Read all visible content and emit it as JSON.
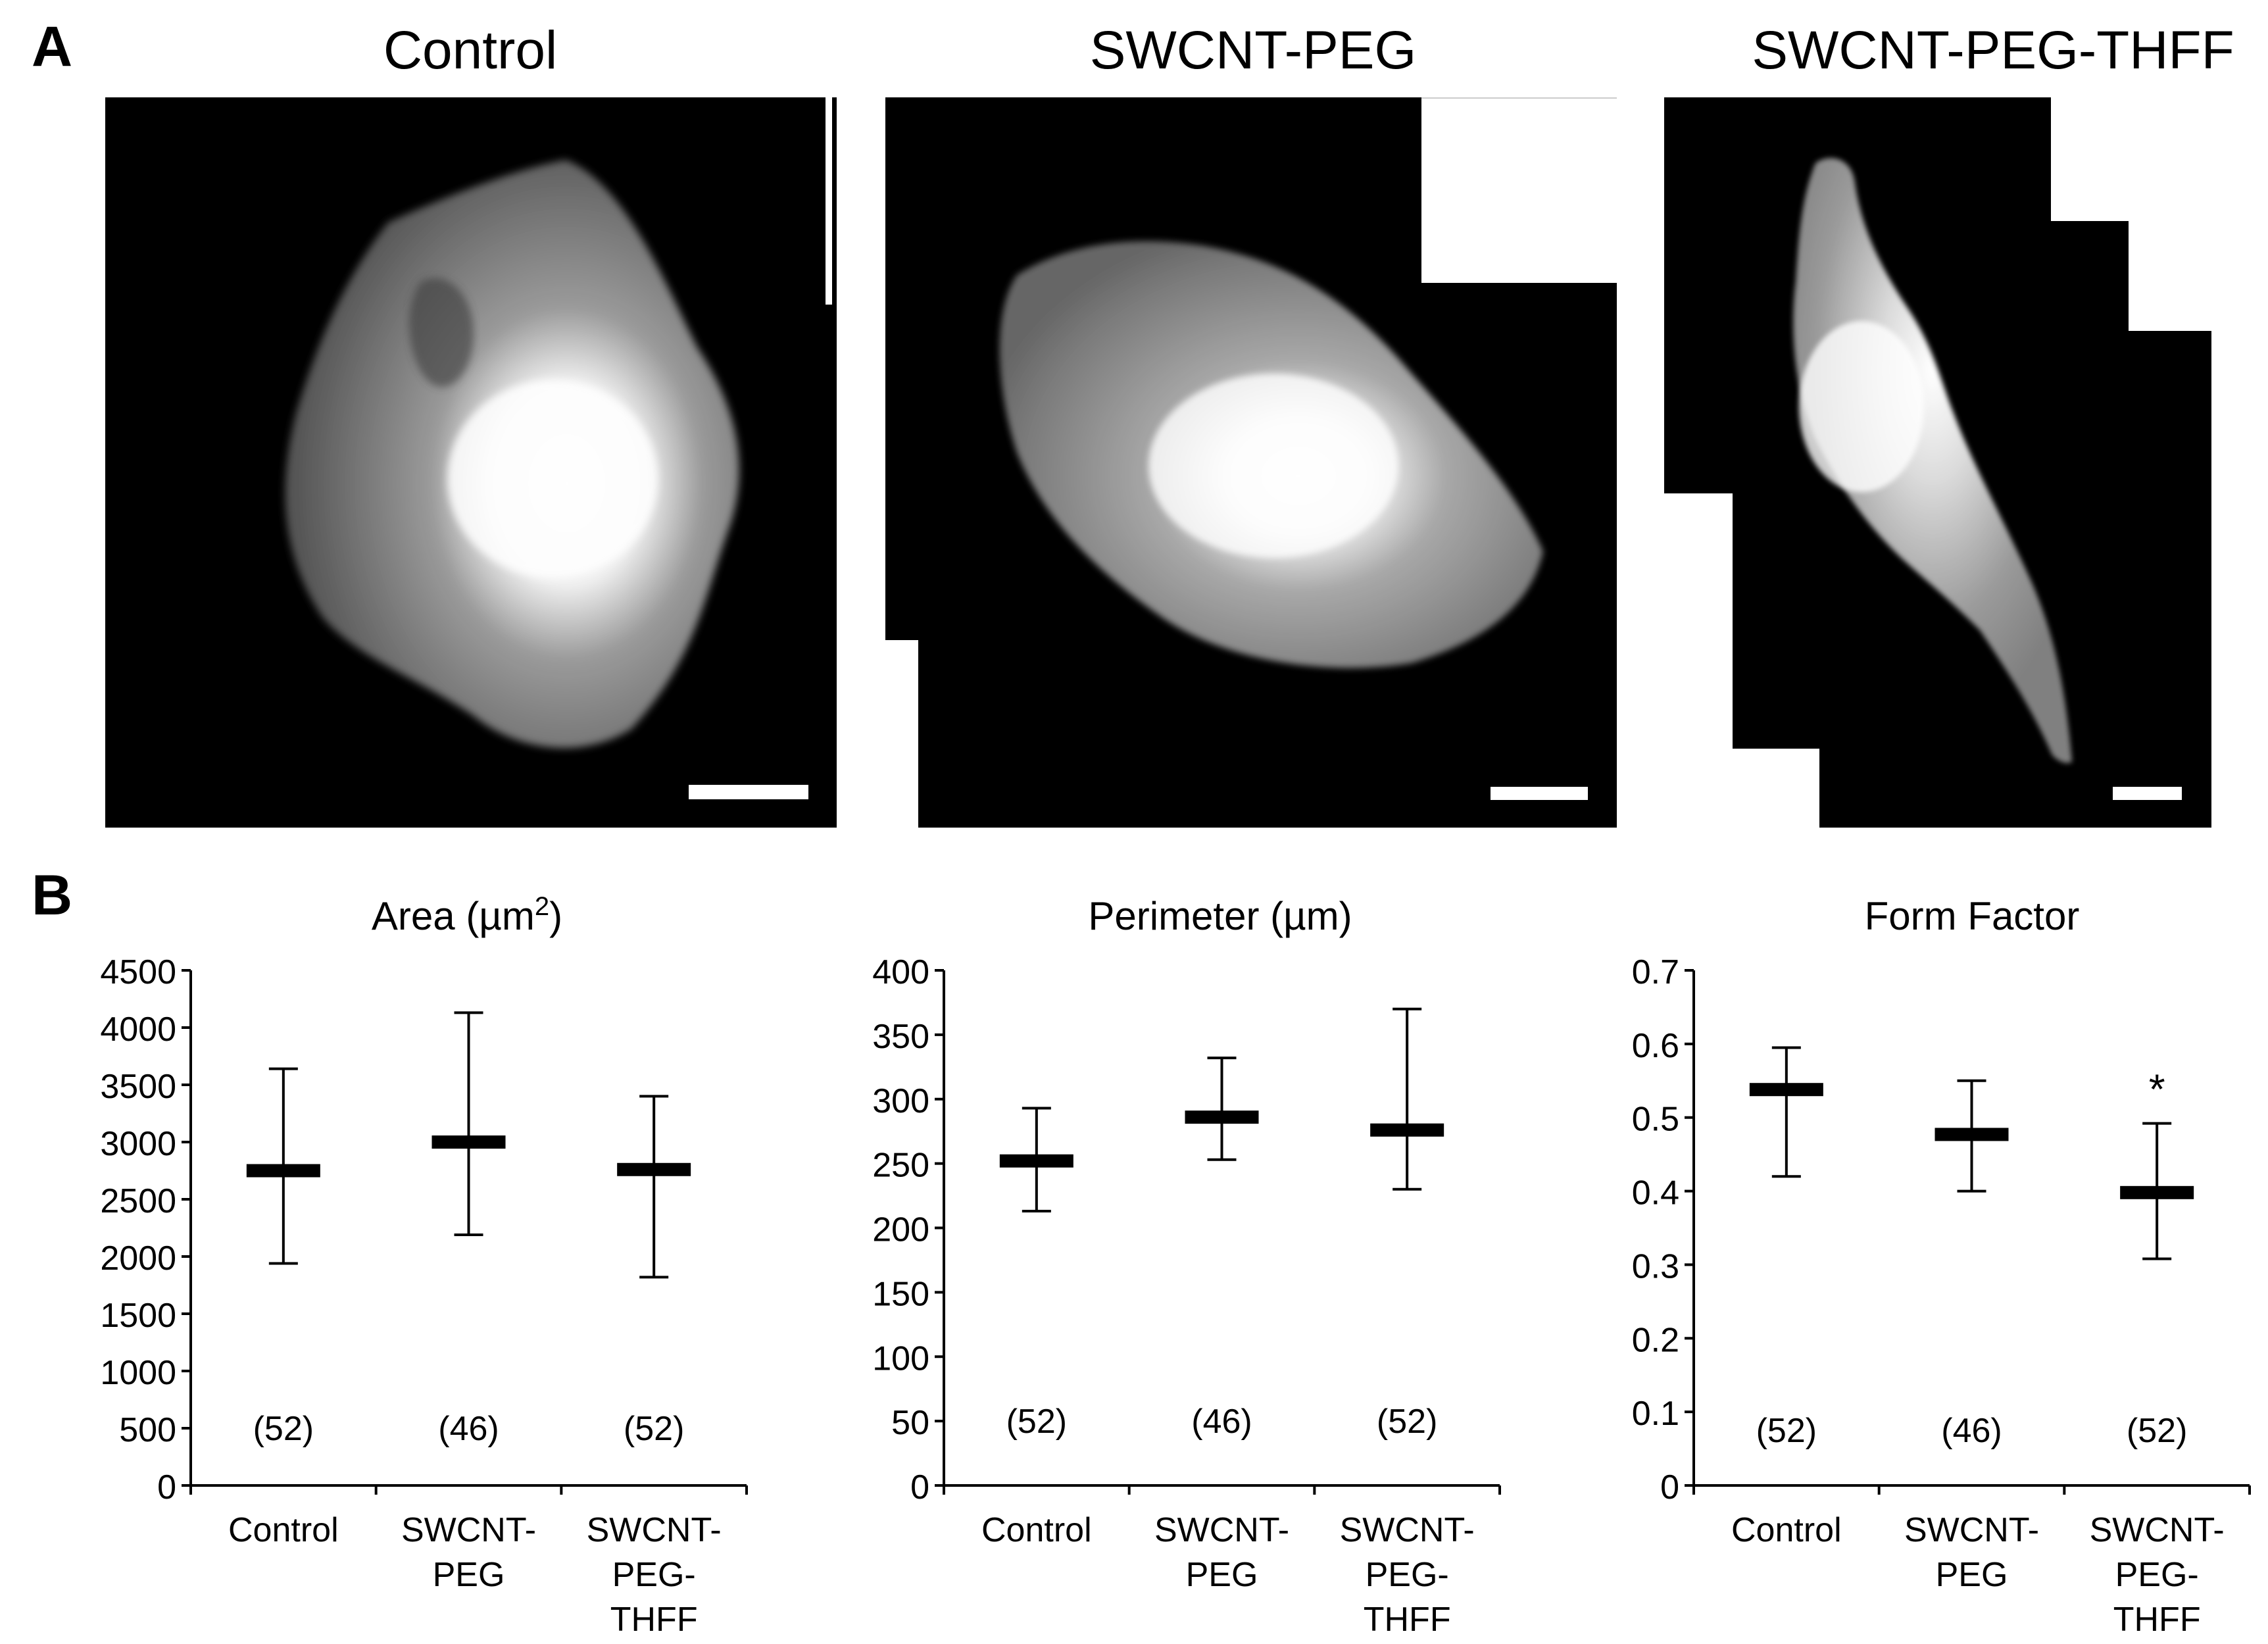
{
  "figure": {
    "panel_a_letter": "A",
    "panel_b_letter": "B",
    "image_titles": [
      "Control",
      "SWCNT-PEG",
      "SWCNT-PEG-THFF"
    ]
  },
  "chart_data": [
    {
      "type": "scatter",
      "title": "Area (µm²)",
      "title_main": "Area (µm",
      "title_sup": "2",
      "title_end": ")",
      "categories": [
        [
          "Control"
        ],
        [
          "SWCNT-",
          "PEG"
        ],
        [
          "SWCNT-",
          "PEG-",
          "THFF"
        ]
      ],
      "values": [
        2750,
        3000,
        2760
      ],
      "error_low": [
        1940,
        2190,
        1820
      ],
      "error_high": [
        3640,
        4130,
        3400
      ],
      "n_labels": [
        "(52)",
        "(46)",
        "(52)"
      ],
      "n_value": 500,
      "annotations": [
        null,
        null,
        null
      ],
      "ylim": [
        0,
        4500
      ],
      "yticks": [
        0,
        500,
        1000,
        1500,
        2000,
        2500,
        3000,
        3500,
        4000,
        4500
      ],
      "ytick_labels": [
        "0",
        "500",
        "1000",
        "1500",
        "2000",
        "2500",
        "3000",
        "3500",
        "4000",
        "4500"
      ],
      "grid": false
    },
    {
      "type": "scatter",
      "title": "Perimeter (µm)",
      "title_main": "Perimeter (µm)",
      "title_sup": "",
      "title_end": "",
      "categories": [
        [
          "Control"
        ],
        [
          "SWCNT-",
          "PEG"
        ],
        [
          "SWCNT-",
          "PEG-",
          "THFF"
        ]
      ],
      "values": [
        252,
        286,
        276
      ],
      "error_low": [
        213,
        253,
        230
      ],
      "error_high": [
        293,
        332,
        370
      ],
      "n_labels": [
        "(52)",
        "(46)",
        "(52)"
      ],
      "n_value": 50,
      "annotations": [
        null,
        null,
        null
      ],
      "ylim": [
        0,
        400
      ],
      "yticks": [
        0,
        50,
        100,
        150,
        200,
        250,
        300,
        350,
        400
      ],
      "ytick_labels": [
        "0",
        "50",
        "100",
        "150",
        "200",
        "250",
        "300",
        "350",
        "400"
      ],
      "grid": false
    },
    {
      "type": "scatter",
      "title": "Form Factor",
      "title_main": "Form Factor",
      "title_sup": "",
      "title_end": "",
      "categories": [
        [
          "Control"
        ],
        [
          "SWCNT-",
          "PEG"
        ],
        [
          "SWCNT-",
          "PEG-",
          "THFF"
        ]
      ],
      "values": [
        0.538,
        0.477,
        0.398
      ],
      "error_low": [
        0.42,
        0.4,
        0.308
      ],
      "error_high": [
        0.595,
        0.55,
        0.492
      ],
      "n_labels": [
        "(52)",
        "(46)",
        "(52)"
      ],
      "n_value": 0.075,
      "annotations": [
        null,
        null,
        "*"
      ],
      "ylim": [
        0,
        0.7
      ],
      "yticks": [
        0,
        0.1,
        0.2,
        0.3,
        0.4,
        0.5,
        0.6,
        0.7
      ],
      "ytick_labels": [
        "0",
        "0.1",
        "0.2",
        "0.3",
        "0.4",
        "0.5",
        "0.6",
        "0.7"
      ],
      "grid": false
    }
  ]
}
